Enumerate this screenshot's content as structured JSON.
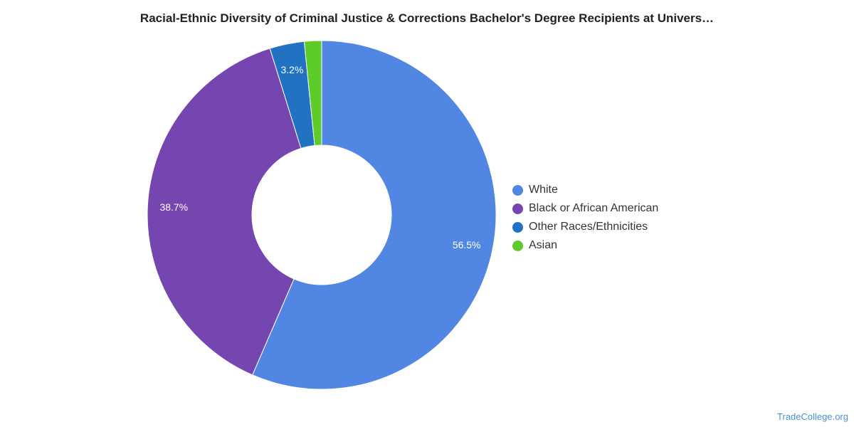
{
  "chart_data": {
    "type": "pie",
    "donut": true,
    "title": "Racial-Ethnic Diversity of Criminal Justice & Corrections Bachelor's Degree Recipients at Univers…",
    "categories": [
      "White",
      "Black or African American",
      "Other Races/Ethnicities",
      "Asian"
    ],
    "values": [
      56.5,
      38.7,
      3.2,
      1.6
    ],
    "data_labels": [
      "56.5%",
      "38.7%",
      "3.2%",
      ""
    ],
    "colors": [
      "#5286e3",
      "#7546b0",
      "#2272c3",
      "#5dcb2a"
    ],
    "legend_position": "right"
  },
  "watermark": "TradeCollege.org"
}
